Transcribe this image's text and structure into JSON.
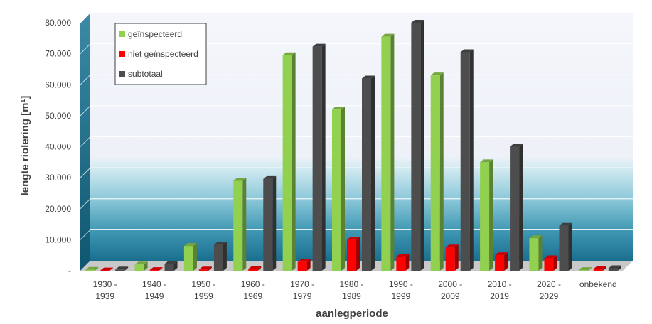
{
  "chart_data": {
    "type": "bar",
    "title": "",
    "xlabel": "aanlegperiode",
    "ylabel": "lengte riolering [m¹]",
    "ylim": [
      0,
      80000
    ],
    "y_ticks": [
      "-",
      "10.000",
      "20.000",
      "30.000",
      "40.000",
      "50.000",
      "60.000",
      "70.000",
      "80.000"
    ],
    "grid": true,
    "legend_position": "top-left",
    "categories": [
      [
        "1930 -",
        "1939"
      ],
      [
        "1940 -",
        "1949"
      ],
      [
        "1950 -",
        "1959"
      ],
      [
        "1960 -",
        "1969"
      ],
      [
        "1970 -",
        "1979"
      ],
      [
        "1980 -",
        "1989"
      ],
      [
        "1990 -",
        "1999"
      ],
      [
        "2000 -",
        "2009"
      ],
      [
        "2010 -",
        "2019"
      ],
      [
        "2020 -",
        "2029"
      ],
      [
        "onbekend"
      ]
    ],
    "series": [
      {
        "name": "geïnspecteerd",
        "color": "#92d050",
        "values": [
          300,
          2000,
          8000,
          29000,
          69500,
          52000,
          75500,
          63000,
          35000,
          10500,
          200
        ]
      },
      {
        "name": "niet geïnspecteerd",
        "color": "#ff0000",
        "values": [
          100,
          200,
          400,
          600,
          2800,
          10000,
          4500,
          7500,
          5000,
          4000,
          600
        ]
      },
      {
        "name": "subtotaal",
        "color": "#4d4d4d",
        "values": [
          400,
          2200,
          8400,
          29600,
          72300,
          62000,
          80000,
          70500,
          40000,
          14500,
          800
        ]
      }
    ]
  }
}
